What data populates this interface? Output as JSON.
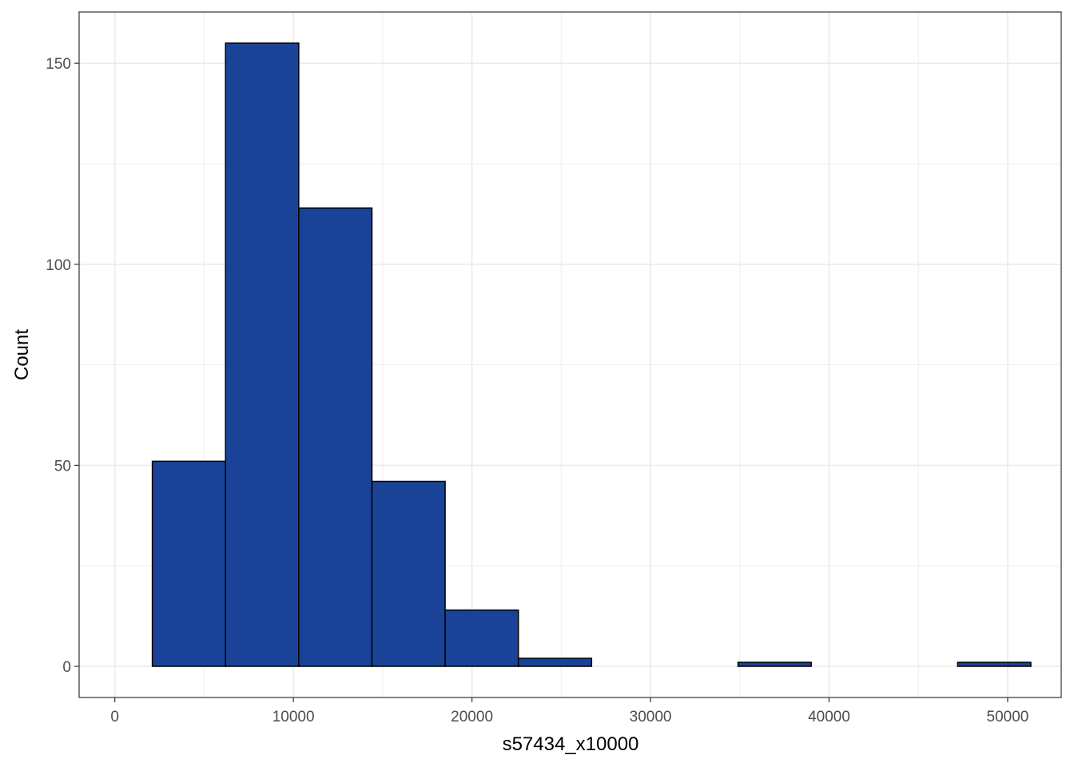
{
  "chart_data": {
    "type": "bar",
    "subtype": "histogram",
    "xlabel": "s57434_x10000",
    "ylabel": "Count",
    "xlim": [
      -2000,
      53000
    ],
    "ylim": [
      -7.75,
      162.75
    ],
    "x_ticks": [
      0,
      10000,
      20000,
      30000,
      40000,
      50000
    ],
    "x_tick_labels": [
      "0",
      "10000",
      "20000",
      "30000",
      "40000",
      "50000"
    ],
    "y_ticks": [
      0,
      50,
      100,
      150
    ],
    "y_tick_labels": [
      "0",
      "50",
      "100",
      "150"
    ],
    "grid": true,
    "bins": [
      {
        "start": 2100,
        "end": 6200,
        "count": 51
      },
      {
        "start": 6200,
        "end": 10300,
        "count": 155
      },
      {
        "start": 10300,
        "end": 14400,
        "count": 114
      },
      {
        "start": 14400,
        "end": 18500,
        "count": 46
      },
      {
        "start": 18500,
        "end": 22600,
        "count": 14
      },
      {
        "start": 22600,
        "end": 26700,
        "count": 2
      },
      {
        "start": 26700,
        "end": 30800,
        "count": 0
      },
      {
        "start": 30800,
        "end": 34900,
        "count": 0
      },
      {
        "start": 34900,
        "end": 39000,
        "count": 1
      },
      {
        "start": 39000,
        "end": 43100,
        "count": 0
      },
      {
        "start": 43100,
        "end": 47200,
        "count": 0
      },
      {
        "start": 47200,
        "end": 51300,
        "count": 1
      }
    ],
    "colors": {
      "fill": "#1A4397",
      "stroke": "#000000",
      "grid": "#ebebeb",
      "border": "#333333"
    }
  }
}
